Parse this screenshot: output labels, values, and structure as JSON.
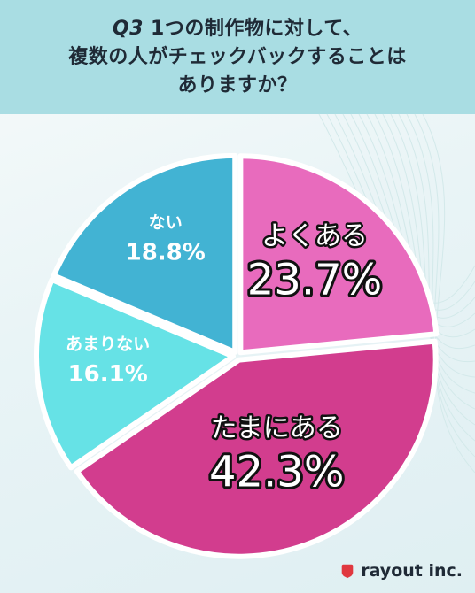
{
  "header": {
    "title_prefix": "Q3",
    "title_line1": " 1つの制作物に対して、",
    "title_line2": "複数の人がチェックバックすることは",
    "title_line3": "ありますか？"
  },
  "chart_data": {
    "type": "pie",
    "title": "Q3 1つの制作物に対して、複数の人がチェックバックすることはありますか？",
    "slices": [
      {
        "label": "よくある",
        "value": 23.7,
        "value_label": "23.7%",
        "color": "#e86bbd"
      },
      {
        "label": "たまにある",
        "value": 42.3,
        "value_label": "42.3%",
        "color": "#d23d8e"
      },
      {
        "label": "あまりない",
        "value": 16.1,
        "value_label": "16.1%",
        "color": "#66e2e6"
      },
      {
        "label": "ない",
        "value": 18.8,
        "value_label": "18.8%",
        "color": "#42b3d3"
      }
    ],
    "start_angle": "top, clockwise"
  },
  "logo": {
    "text": "rayout inc.",
    "color": "#e0383f"
  }
}
